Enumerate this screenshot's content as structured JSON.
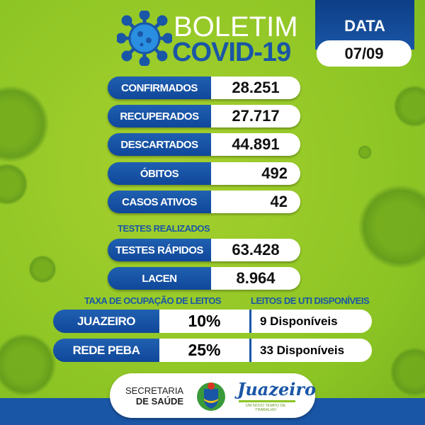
{
  "header": {
    "title_line1": "BOLETIM",
    "title_line2": "COVID-19",
    "date_label": "DATA",
    "date": "07/09"
  },
  "stats": [
    {
      "label": "CONFIRMADOS",
      "value": "28.251"
    },
    {
      "label": "RECUPERADOS",
      "value": "27.717"
    },
    {
      "label": "DESCARTADOS",
      "value": "44.891"
    },
    {
      "label": "ÓBITOS",
      "value": "492"
    },
    {
      "label": "CASOS ATIVOS",
      "value": "42"
    }
  ],
  "tests": {
    "heading": "TESTES REALIZADOS",
    "items": [
      {
        "label": "TESTES RÁPIDOS",
        "value": "63.428"
      },
      {
        "label": "LACEN",
        "value": "8.964"
      }
    ]
  },
  "beds": {
    "occupancy_heading": "TAXA DE OCUPAÇÃO DE LEITOS",
    "uti_heading": "LEITOS DE UTI DISPONÍVEIS",
    "rows": [
      {
        "label": "JUAZEIRO",
        "rate": "10%",
        "available": "9 Disponíveis"
      },
      {
        "label": "REDE PEBA",
        "rate": "25%",
        "available": "33 Disponíveis"
      }
    ]
  },
  "footer": {
    "dept_line1": "SECRETARIA",
    "dept_line2": "DE SAÚDE",
    "city_logo": "Juazeiro",
    "city_tagline": "UM NOVO TEMPO DE TRABALHO"
  },
  "colors": {
    "green": "#8bc424",
    "blue": "#1a56a6",
    "dark_blue": "#10479a"
  }
}
